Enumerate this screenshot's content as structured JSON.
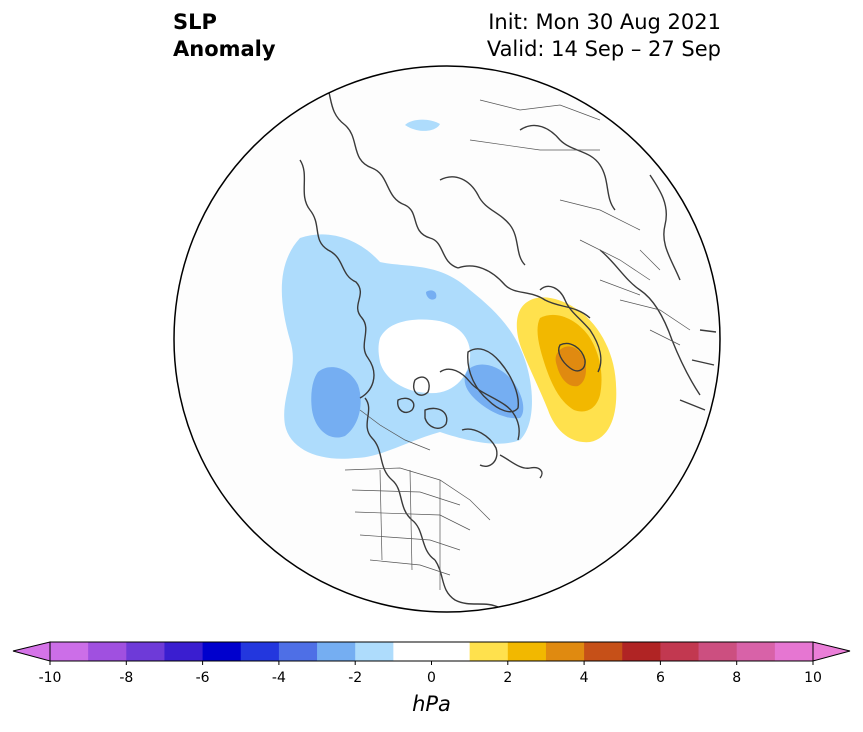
{
  "title": {
    "left_line1": "SLP",
    "left_line2": "Anomaly",
    "right_line1": "Init: Mon 30 Aug 2021",
    "right_line2": "Valid: 14 Sep – 27 Sep"
  },
  "colorbar": {
    "unit": "hPa",
    "ticks": [
      "-10",
      "-8",
      "-6",
      "-4",
      "-2",
      "0",
      "2",
      "4",
      "6",
      "8",
      "10"
    ],
    "bins": [
      "#cc6ee8",
      "#a050e0",
      "#6e3ad8",
      "#3a1ed0",
      "#0000cd",
      "#2337de",
      "#4e6fe6",
      "#75aef2",
      "#aedcfc",
      "#ffffff",
      "#ffffff",
      "#ffe14d",
      "#f2b800",
      "#e08a10",
      "#c65018",
      "#b02424",
      "#c23850",
      "#cc4f80",
      "#d862a8",
      "#e676d2"
    ],
    "extend_low_color": "#d573e8",
    "extend_high_color": "#ea7ed8"
  },
  "map": {
    "projection": "north-polar-stereographic",
    "land_outline_color": "#3a3a3a",
    "anomaly_regions": [
      {
        "name": "north-pacific-low",
        "level": "-1 to -2 hPa",
        "color": "#aedcfc"
      },
      {
        "name": "gulf-of-alaska-core",
        "level": "-2 to -3 hPa",
        "color": "#75aef2"
      },
      {
        "name": "greenland-low-core",
        "level": "-2 to -3 hPa",
        "color": "#75aef2"
      },
      {
        "name": "north-atlantic-high",
        "level": "+1 to +2 hPa",
        "color": "#ffe14d"
      },
      {
        "name": "scandinavia-high",
        "level": "+2 to +3 hPa",
        "color": "#f2b800"
      },
      {
        "name": "scandinavia-high-core",
        "level": "+3 to +4 hPa",
        "color": "#e08a10"
      }
    ]
  }
}
